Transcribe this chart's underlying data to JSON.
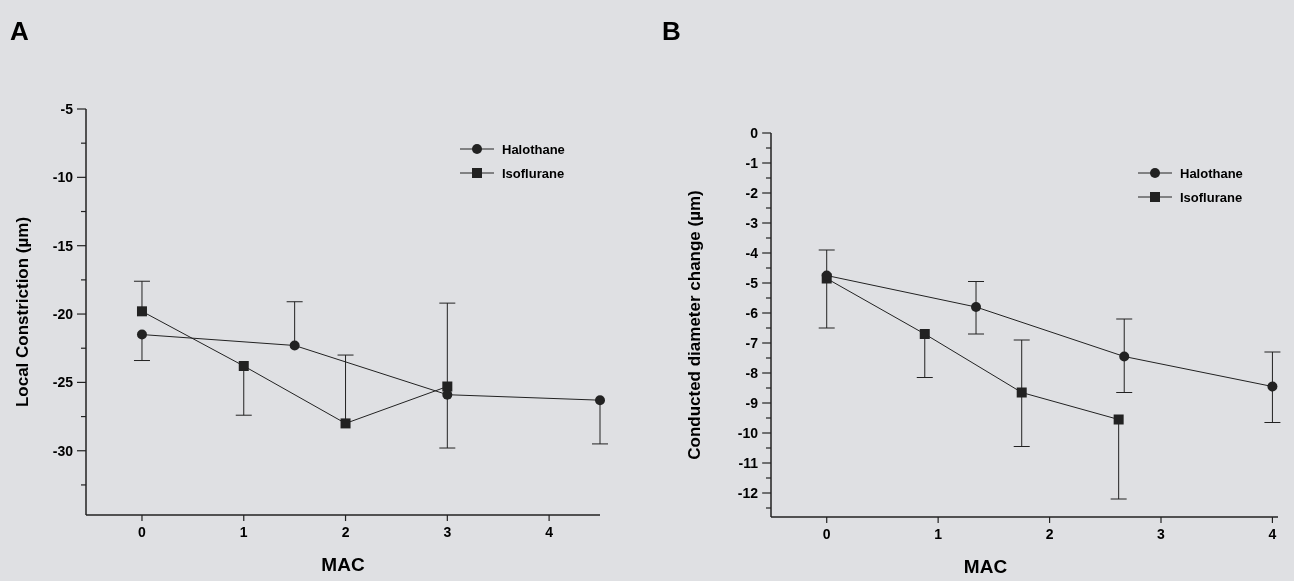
{
  "chart_data": [
    {
      "type": "line",
      "title": "A",
      "xlabel": "MAC",
      "ylabel": "Local Constriction (µm)",
      "xlim": [
        -0.55,
        4.5
      ],
      "xticks": [
        0,
        1,
        2,
        3,
        4
      ],
      "ylim": [
        -34.7,
        -5
      ],
      "yticks": [
        -5,
        {
          "value": -7.5,
          "label": null
        },
        -10,
        {
          "value": -12.5,
          "label": null
        },
        -15,
        {
          "value": -17.5,
          "label": null
        },
        -20,
        {
          "value": -22.5,
          "label": null
        },
        -25,
        {
          "value": -27.5,
          "label": null
        },
        -30,
        {
          "value": -32.5,
          "label": null
        }
      ],
      "legend": "top right",
      "line_style": "solid",
      "grid": false,
      "series": [
        {
          "name": "Halothane",
          "color": "#222222",
          "marker": "circle",
          "x": [
            0,
            1.5,
            3,
            4.5
          ],
          "values": [
            -21.5,
            -22.3,
            -25.9,
            -26.3
          ],
          "errors": [
            [
              -23.4,
              -21.5
            ],
            [
              -22.3,
              -19.1
            ],
            [
              -29.8,
              -25.9
            ],
            [
              -29.5,
              -26.3
            ]
          ]
        },
        {
          "name": "Isoflurane",
          "color": "#222222",
          "marker": "square",
          "x": [
            0,
            1,
            2,
            3
          ],
          "values": [
            -19.8,
            -23.8,
            -28.0,
            -25.3
          ],
          "errors": [
            [
              -19.8,
              -17.6
            ],
            [
              -27.4,
              -23.8
            ],
            [
              -28.0,
              -23.0
            ],
            [
              -25.3,
              -19.2
            ]
          ]
        }
      ]
    },
    {
      "type": "line",
      "title": "B",
      "xlabel": "MAC",
      "ylabel": "Conducted diameter change (µm)",
      "xlim": [
        -0.5,
        4.05
      ],
      "xticks": [
        0,
        1,
        2,
        3,
        4
      ],
      "ylim": [
        -12.8,
        0
      ],
      "yticks": [
        0,
        {
          "value": -0.5,
          "label": null
        },
        -1,
        {
          "value": -1.5,
          "label": null
        },
        -2,
        {
          "value": -2.5,
          "label": null
        },
        -3,
        {
          "value": -3.5,
          "label": null
        },
        -4,
        {
          "value": -4.5,
          "label": null
        },
        -5,
        {
          "value": -5.5,
          "label": null
        },
        -6,
        {
          "value": -6.5,
          "label": null
        },
        -7,
        {
          "value": -7.5,
          "label": null
        },
        -8,
        {
          "value": -8.5,
          "label": null
        },
        -9,
        {
          "value": -9.5,
          "label": null
        },
        -10,
        {
          "value": -10.5,
          "label": null
        },
        -11,
        {
          "value": -11.5,
          "label": null
        },
        -12,
        {
          "value": -12.5,
          "label": null
        }
      ],
      "legend": "top right",
      "line_style": "solid",
      "grid": false,
      "series": [
        {
          "name": "Halothane",
          "color": "#222222",
          "marker": "circle",
          "x": [
            0,
            1.34,
            2.67,
            4
          ],
          "values": [
            -4.75,
            -5.8,
            -7.45,
            -8.45
          ],
          "errors": [
            [
              -4.75,
              -3.9
            ],
            [
              -6.7,
              -4.95
            ],
            [
              -8.65,
              -6.2
            ],
            [
              -9.65,
              -7.3
            ]
          ]
        },
        {
          "name": "Isoflurane",
          "color": "#222222",
          "marker": "square",
          "x": [
            0,
            0.88,
            1.75,
            2.62
          ],
          "values": [
            -4.85,
            -6.7,
            -8.65,
            -9.55
          ],
          "errors": [
            [
              -6.5,
              -4.85
            ],
            [
              -8.15,
              -6.7
            ],
            [
              -10.45,
              -6.9
            ],
            [
              -12.2,
              -9.55
            ]
          ]
        }
      ]
    }
  ]
}
